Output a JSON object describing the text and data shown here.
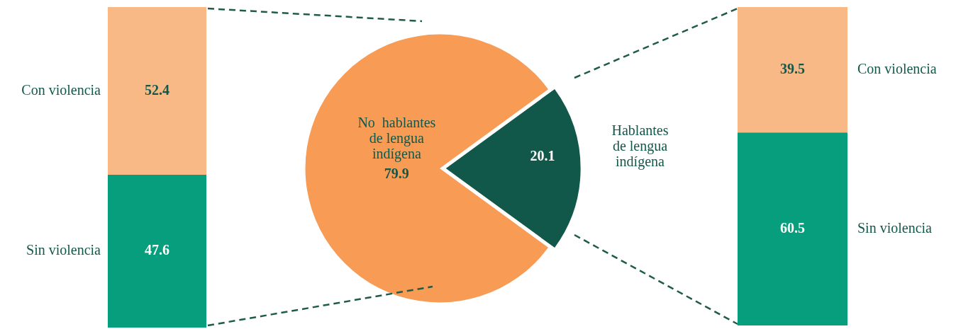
{
  "chart_data": [
    {
      "type": "bar",
      "stacked": true,
      "categories": [
        null
      ],
      "data_labels": true,
      "series": [
        {
          "name": "Sin violencia",
          "color": "#069e7c",
          "values": [
            47.6
          ]
        },
        {
          "name": "Con violencia",
          "color": "#f9b986",
          "values": [
            52.4
          ]
        }
      ]
    },
    {
      "type": "pie",
      "categories": [
        "No  hablantes de lengua indígena",
        "Hablantes de lengua indígena"
      ],
      "values": [
        79.9,
        20.1
      ],
      "colors": [
        "#f79b55",
        "#12584a"
      ],
      "data_labels": true
    },
    {
      "type": "bar",
      "stacked": true,
      "categories": [
        null
      ],
      "data_labels": true,
      "series": [
        {
          "name": "Sin violencia",
          "color": "#069e7c",
          "values": [
            60.5
          ]
        },
        {
          "name": "Con violencia",
          "color": "#f9b986",
          "values": [
            39.5
          ]
        }
      ]
    }
  ]
}
